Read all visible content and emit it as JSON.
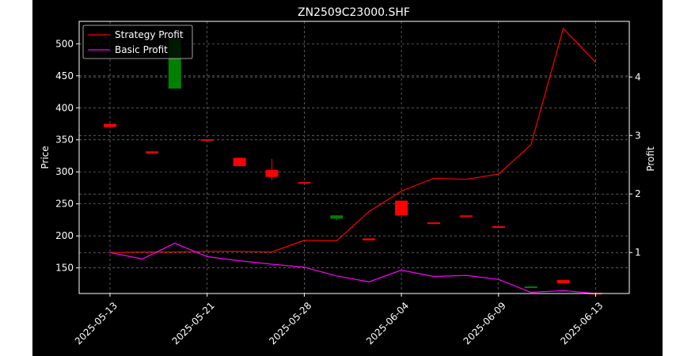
{
  "chart_data": {
    "type": "candlestick",
    "title": "ZN2509C23000.SHF",
    "xlabel": "",
    "ylabel_left": "Price",
    "ylabel_right": "Profit",
    "ylim_left": [
      110,
      535
    ],
    "ylim_right": [
      0.3,
      4.95
    ],
    "grid": true,
    "legend_placement": "top-left",
    "x_tick_labels": [
      "2025-05-13",
      "2025-05-21",
      "2025-05-28",
      "2025-06-04",
      "2025-06-09",
      "2025-06-13"
    ],
    "x_tick_index": [
      0,
      3,
      6,
      9,
      12,
      15
    ],
    "y_ticks_left": [
      150,
      200,
      250,
      300,
      350,
      400,
      450,
      500
    ],
    "y_ticks_right": [
      1,
      2,
      3,
      4
    ],
    "colors": {
      "up": "#008000",
      "down": "#ff0000",
      "strategy": "#ff0000",
      "basic": "#ff00ff",
      "grid": "#7a7a7a"
    },
    "candles": [
      {
        "i": 0,
        "open": 375,
        "high": 375,
        "low": 368,
        "close": 370
      },
      {
        "i": 1.3,
        "open": 332,
        "high": 332,
        "low": 328,
        "close": 329
      },
      {
        "i": 2,
        "open": 430,
        "high": 510,
        "low": 430,
        "close": 508
      },
      {
        "i": 3,
        "open": 351,
        "high": 351,
        "low": 349,
        "close": 349
      },
      {
        "i": 4,
        "open": 322,
        "high": 322,
        "low": 309,
        "close": 309
      },
      {
        "i": 5,
        "open": 303,
        "high": 320,
        "low": 287,
        "close": 292
      },
      {
        "i": 6,
        "open": 284,
        "high": 284,
        "low": 282,
        "close": 282
      },
      {
        "i": 7,
        "open": 227,
        "high": 232,
        "low": 224,
        "close": 232
      },
      {
        "i": 8,
        "open": 196,
        "high": 196,
        "low": 193,
        "close": 193
      },
      {
        "i": 9,
        "open": 255,
        "high": 255,
        "low": 232,
        "close": 232
      },
      {
        "i": 10,
        "open": 221,
        "high": 221,
        "low": 220,
        "close": 220
      },
      {
        "i": 11,
        "open": 232,
        "high": 232,
        "low": 231,
        "close": 231
      },
      {
        "i": 12,
        "open": 215,
        "high": 215,
        "low": 214,
        "close": 214
      },
      {
        "i": 13,
        "open": 120,
        "high": 121,
        "low": 120,
        "close": 121
      },
      {
        "i": 14,
        "open": 131,
        "high": 131,
        "low": 126,
        "close": 126
      },
      {
        "i": 15,
        "open": 111,
        "high": 111,
        "low": 110,
        "close": 110
      }
    ],
    "series": [
      {
        "name": "Strategy Profit",
        "x": [
          0,
          1,
          2,
          3,
          4,
          5,
          6,
          7,
          8,
          9,
          10,
          11,
          12,
          13,
          14,
          15
        ],
        "values": [
          1.0,
          1.01,
          1.01,
          1.02,
          1.02,
          1.01,
          1.21,
          1.2,
          1.7,
          2.05,
          2.27,
          2.25,
          2.34,
          2.84,
          4.83,
          4.25
        ]
      },
      {
        "name": "Basic Profit",
        "x": [
          0,
          1,
          2,
          3,
          4,
          5,
          6,
          7,
          8,
          9,
          10,
          11,
          12,
          13,
          14,
          15
        ],
        "values": [
          1.0,
          0.89,
          1.16,
          0.93,
          0.86,
          0.8,
          0.75,
          0.6,
          0.5,
          0.7,
          0.59,
          0.61,
          0.54,
          0.32,
          0.35,
          0.3
        ]
      }
    ]
  }
}
